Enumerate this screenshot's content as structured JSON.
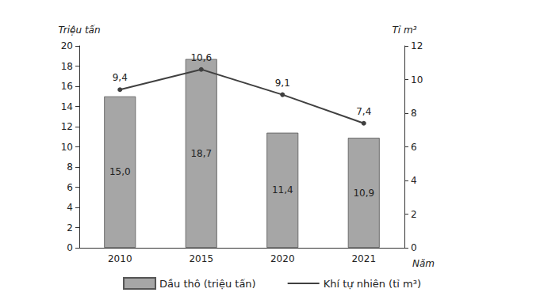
{
  "chart_data": {
    "type": "bar",
    "categories": [
      "2010",
      "2015",
      "2020",
      "2021"
    ],
    "x_label": "Năm",
    "y_label": "Triệu tấn",
    "y2_label": "Tỉ m³",
    "ylim": [
      0,
      20
    ],
    "yticks": [
      0,
      2,
      4,
      6,
      8,
      10,
      12,
      14,
      16,
      18,
      20
    ],
    "y2lim": [
      0,
      12
    ],
    "y2ticks": [
      0,
      2,
      4,
      6,
      8,
      10,
      12
    ],
    "grid": false,
    "data_labels": true,
    "legend": "bottom",
    "series": [
      {
        "name": "Dầu thô (triệu tấn)",
        "type": "bar",
        "color": "#a6a6a6",
        "values": [
          15.0,
          18.7,
          11.4,
          10.9
        ],
        "value_labels": [
          "15,0",
          "18,7",
          "11,4",
          "10,9"
        ]
      },
      {
        "name": "Khí tự nhiên (tỉ m³)",
        "type": "line",
        "axis": "y2",
        "color": "#404040",
        "marker": "circle",
        "values": [
          9.4,
          10.6,
          9.1,
          7.4
        ],
        "value_labels": [
          "9,4",
          "10,6",
          "9,1",
          "7,4"
        ]
      }
    ]
  }
}
